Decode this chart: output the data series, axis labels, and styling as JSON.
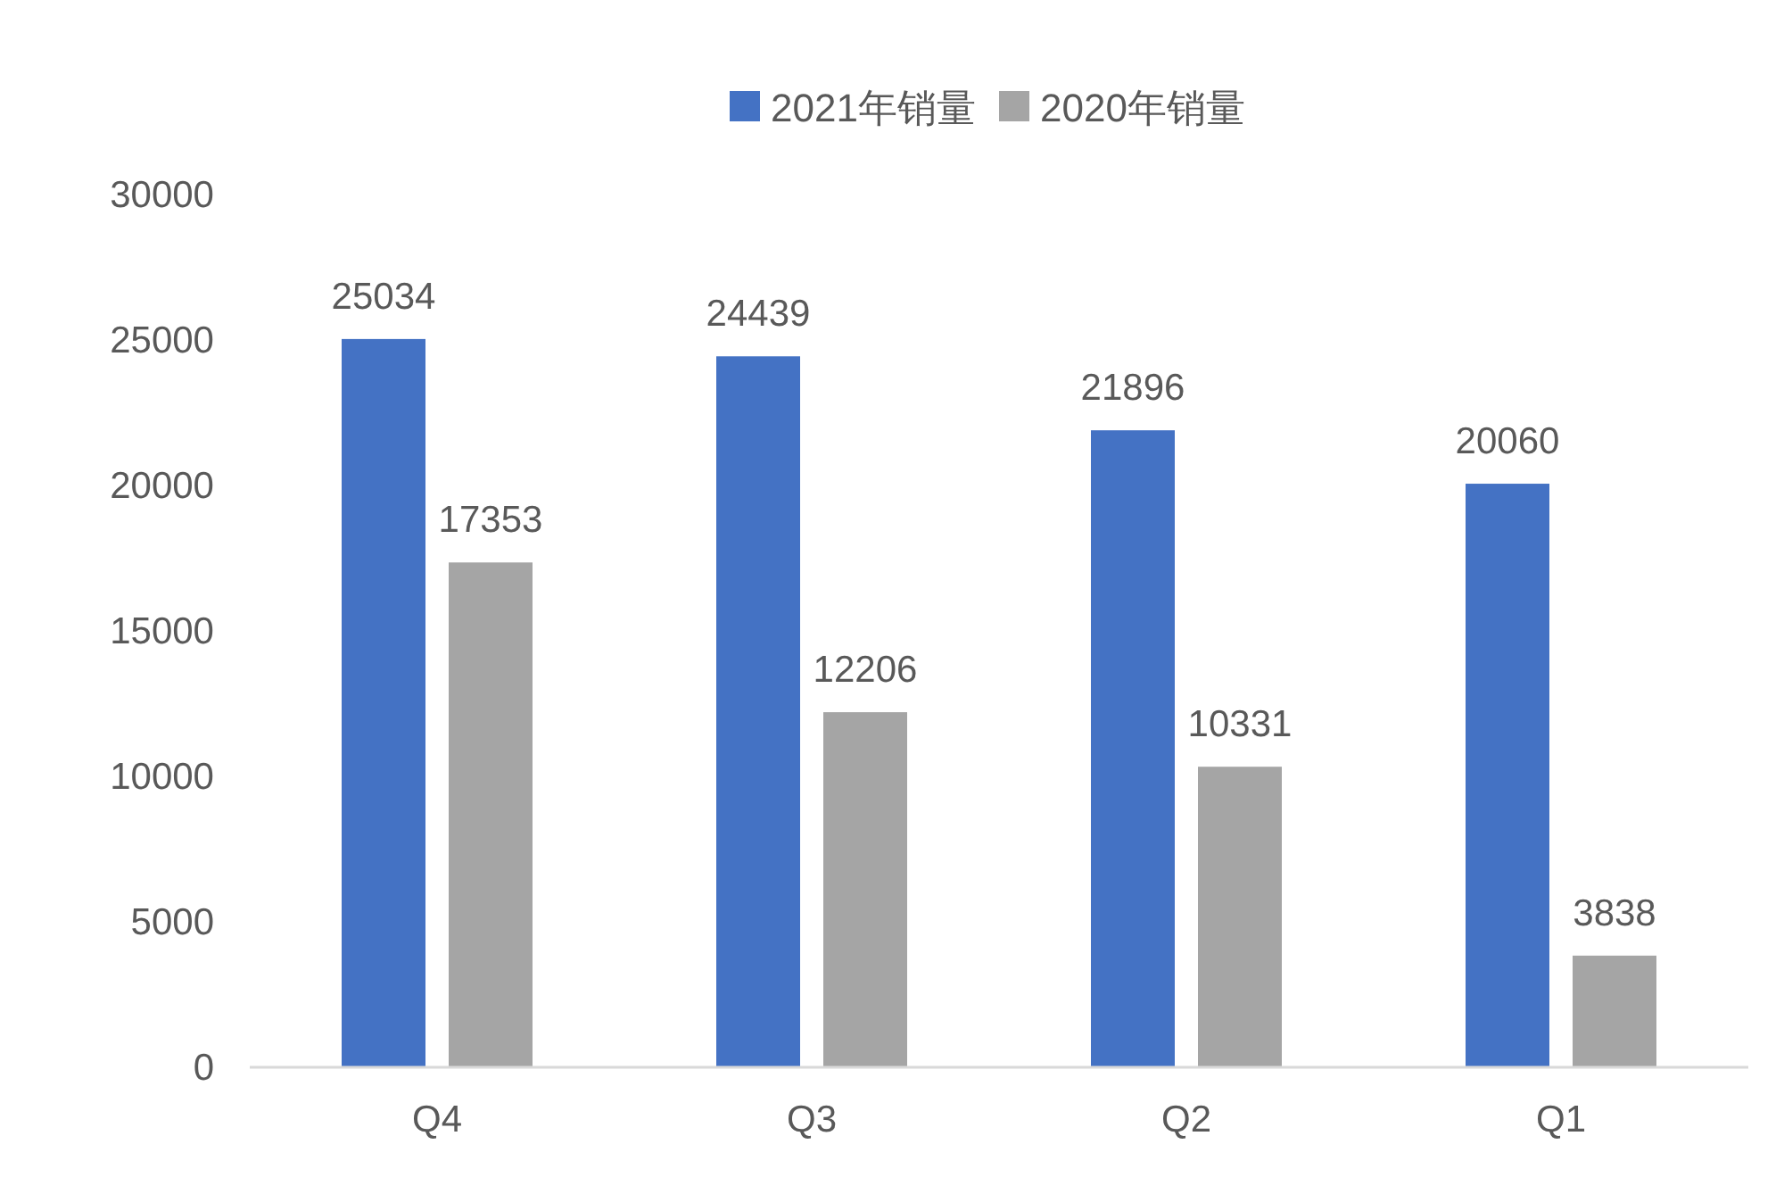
{
  "chart_data": {
    "type": "bar",
    "categories": [
      "Q4",
      "Q3",
      "Q2",
      "Q1"
    ],
    "series": [
      {
        "name": "2021年销量",
        "color": "#4472c4",
        "values": [
          25034,
          24439,
          21896,
          20060
        ]
      },
      {
        "name": "2020年销量",
        "color": "#a5a5a5",
        "values": [
          17353,
          12206,
          10331,
          3838
        ]
      }
    ],
    "ylim": [
      0,
      30000
    ],
    "yticks": [
      0,
      5000,
      10000,
      15000,
      20000,
      25000,
      30000
    ],
    "data_labels": true,
    "legend": "top",
    "grid": false
  }
}
